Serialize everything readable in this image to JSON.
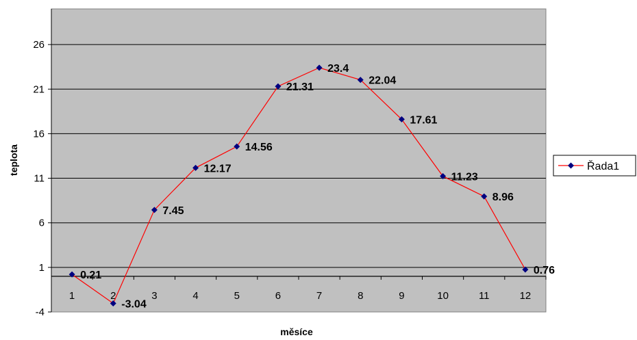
{
  "chart_data": {
    "type": "line",
    "x": [
      1,
      2,
      3,
      4,
      5,
      6,
      7,
      8,
      9,
      10,
      11,
      12
    ],
    "series": [
      {
        "name": "Řada1",
        "values": [
          0.21,
          -3.04,
          7.45,
          12.17,
          14.56,
          21.31,
          23.4,
          22.04,
          17.61,
          11.23,
          8.96,
          0.76
        ],
        "data_labels": [
          "0.21",
          "-3.04",
          "7.45",
          "12.17",
          "14.56",
          "21.31",
          "23.4",
          "22.04",
          "17.61",
          "11.23",
          "8.96",
          "0.76"
        ]
      }
    ],
    "xlabel": "měsíce",
    "ylabel": "teplota",
    "ylim": [
      -4,
      30
    ],
    "yticks": [
      -4,
      1,
      6,
      11,
      16,
      21,
      26
    ],
    "x_tick_labels": [
      "1",
      "2",
      "3",
      "4",
      "5",
      "6",
      "7",
      "8",
      "9",
      "10",
      "11",
      "12"
    ],
    "x_axis_crosses_at": 0,
    "grid": "horizontal",
    "legend": "right",
    "colors": {
      "plot_background": "#c0c0c0",
      "line": "#ff0000",
      "marker": "#000080",
      "gridline": "#000000"
    }
  }
}
